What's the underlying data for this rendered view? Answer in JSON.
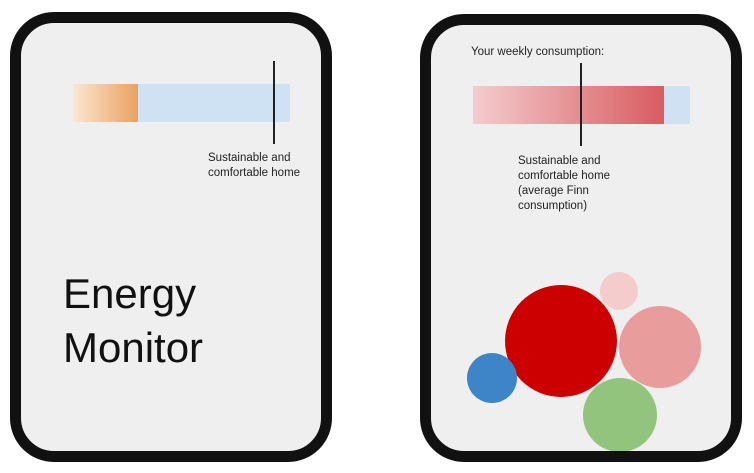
{
  "left_device": {
    "consumption_fraction": 0.3,
    "target_marker_fraction": 0.92,
    "target_label": "Sustainable and comfortable home",
    "title_line1": "Energy",
    "title_line2": "Monitor"
  },
  "right_device": {
    "heading": "Your weekly consumption:",
    "consumption_fraction": 0.88,
    "target_marker_fraction": 0.49,
    "target_label": "Sustainable and comfortable home (average Finn consumption)",
    "bubbles": [
      {
        "name": "bubble-dark-red",
        "color": "#cc0000"
      },
      {
        "name": "bubble-light-red",
        "color": "#e99c9c"
      },
      {
        "name": "bubble-pale-pink",
        "color": "#f4cccc"
      },
      {
        "name": "bubble-blue",
        "color": "#3d85c6"
      },
      {
        "name": "bubble-green",
        "color": "#93c47d"
      }
    ]
  }
}
